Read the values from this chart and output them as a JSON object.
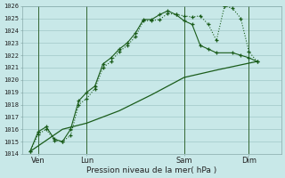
{
  "xlabel": "Pression niveau de la mer( hPa )",
  "background_color": "#c8e8e8",
  "grid_color": "#a0c8c8",
  "line_color": "#1a5c1a",
  "vline_color": "#336633",
  "ylim": [
    1014,
    1026
  ],
  "xlim": [
    0,
    16
  ],
  "xtick_positions": [
    1,
    4,
    10,
    14
  ],
  "xtick_labels": [
    "Ven",
    "Lun",
    "Sam",
    "Dim"
  ],
  "vline_positions": [
    1,
    4,
    10,
    14
  ],
  "series1_x": [
    0.5,
    1.0,
    1.5,
    2.0,
    2.5,
    3.0,
    3.5,
    4.0,
    4.5,
    5.0,
    5.5,
    6.0,
    6.5,
    7.0,
    7.5,
    8.0,
    8.5,
    9.0,
    9.5,
    10.0,
    10.5,
    11.0,
    11.5,
    12.0,
    12.5,
    13.0,
    13.5,
    14.0,
    14.5
  ],
  "series1_y": [
    1014.2,
    1015.6,
    1016.0,
    1015.1,
    1015.0,
    1015.5,
    1018.0,
    1018.5,
    1019.3,
    1021.0,
    1021.5,
    1022.3,
    1022.8,
    1023.5,
    1024.8,
    1024.8,
    1024.9,
    1025.4,
    1025.3,
    1025.2,
    1025.1,
    1025.2,
    1024.5,
    1023.2,
    1026.0,
    1025.8,
    1025.0,
    1022.3,
    1021.5
  ],
  "series2_x": [
    0.5,
    1.0,
    1.5,
    2.0,
    2.5,
    3.0,
    3.5,
    4.0,
    4.5,
    5.0,
    5.5,
    6.0,
    6.5,
    7.0,
    7.5,
    8.0,
    8.5,
    9.0,
    9.5,
    10.0,
    10.5,
    11.0,
    11.5,
    12.0,
    13.0,
    13.5,
    14.0,
    14.5
  ],
  "series2_y": [
    1014.2,
    1015.8,
    1016.2,
    1015.2,
    1015.0,
    1016.0,
    1018.3,
    1019.0,
    1019.5,
    1021.3,
    1021.8,
    1022.5,
    1023.0,
    1023.8,
    1024.9,
    1024.9,
    1025.3,
    1025.6,
    1025.3,
    1024.8,
    1024.5,
    1022.8,
    1022.5,
    1022.2,
    1022.2,
    1022.0,
    1021.8,
    1021.5
  ],
  "series3_x": [
    0.5,
    2.5,
    4.0,
    6.0,
    8.0,
    10.0,
    12.0,
    14.5
  ],
  "series3_y": [
    1014.2,
    1016.0,
    1016.5,
    1017.5,
    1018.8,
    1020.2,
    1020.8,
    1021.5
  ]
}
